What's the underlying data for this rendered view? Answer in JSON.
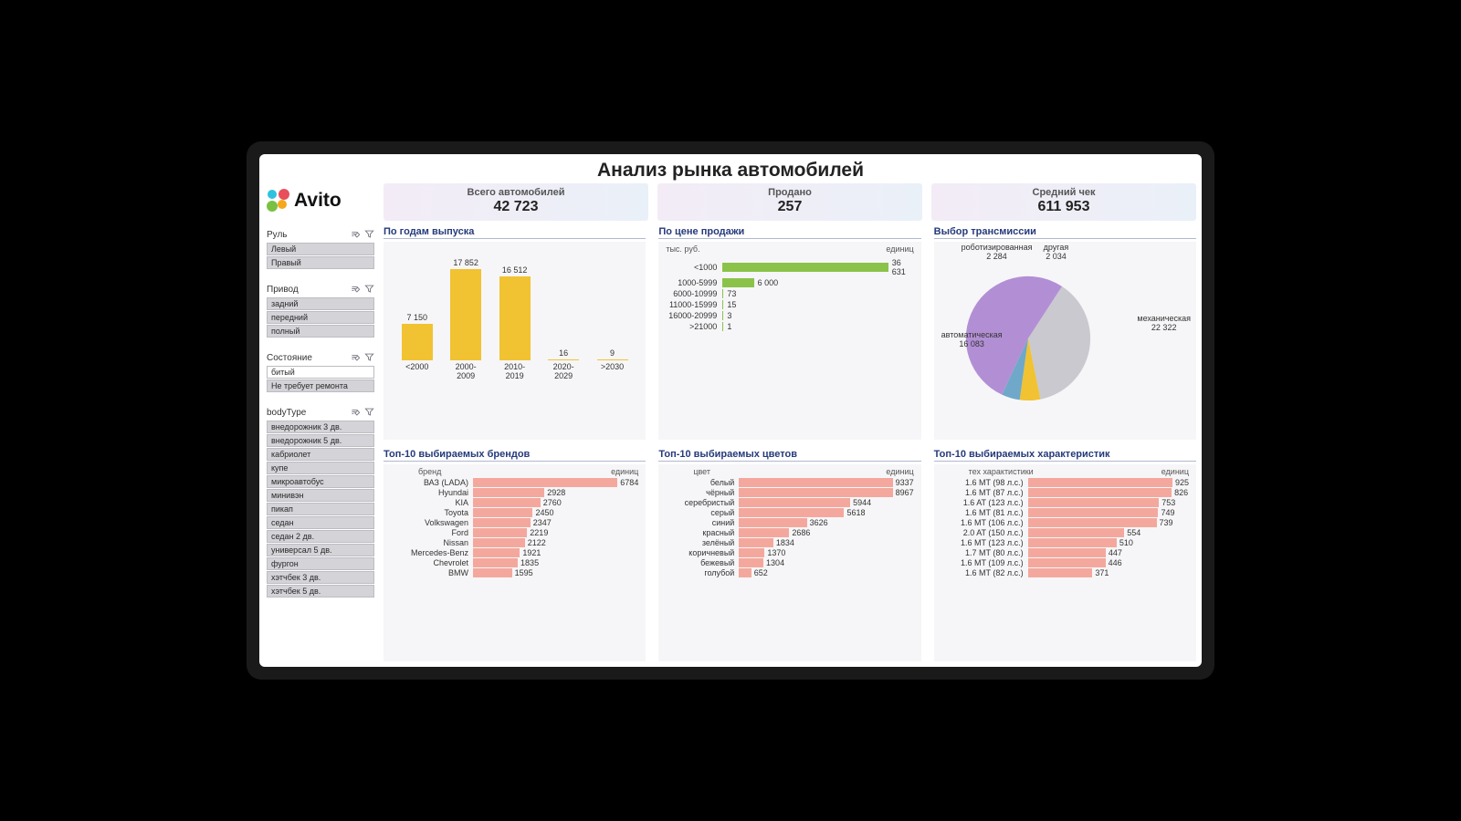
{
  "title": "Анализ рынка автомобилей",
  "logo_text": "Avito",
  "logo_colors": [
    "#2fc1e0",
    "#e84f5b",
    "#7ac143",
    "#f6a81c"
  ],
  "kpis": [
    {
      "label": "Всего автомобилей",
      "value": "42 723"
    },
    {
      "label": "Продано",
      "value": "257"
    },
    {
      "label": "Средний чек",
      "value": "611 953"
    }
  ],
  "filter_groups": [
    {
      "label": "Руль",
      "items": [
        "Левый",
        "Правый"
      ]
    },
    {
      "label": "Привод",
      "items": [
        "задний",
        "передний",
        "полный"
      ]
    },
    {
      "label": "Состояние",
      "items": [
        "битый",
        "Не требует ремонта"
      ],
      "alt_first": true
    },
    {
      "label": "bodyType",
      "items": [
        "внедорожник 3 дв.",
        "внедорожник 5 дв.",
        "кабриолет",
        "купе",
        "микроавтобус",
        "минивэн",
        "пикап",
        "седан",
        "седан 2 дв.",
        "универсал 5 дв.",
        "фургон",
        "хэтчбек 3 дв.",
        "хэтчбек 5 дв."
      ]
    }
  ],
  "year_chart": {
    "title": "По годам выпуска",
    "bar_color": "#f1c232",
    "max": 17852,
    "bars": [
      {
        "label": "<2000",
        "value": 7150,
        "value_text": "7 150"
      },
      {
        "label": "2000-2009",
        "value": 17852,
        "value_text": "17 852"
      },
      {
        "label": "2010-2019",
        "value": 16512,
        "value_text": "16 512"
      },
      {
        "label": "2020-2029",
        "value": 16,
        "value_text": "16"
      },
      {
        "label": ">2030",
        "value": 9,
        "value_text": "9"
      }
    ]
  },
  "price_chart": {
    "title": "По цене продажи",
    "left_label": "тыс. руб.",
    "right_label": "единиц",
    "bar_color": "#8bc34a",
    "max": 36631,
    "rows": [
      {
        "label": "<1000",
        "value": 36631,
        "value_text": "36 631"
      },
      {
        "label": "1000-5999",
        "value": 6000,
        "value_text": "6 000"
      },
      {
        "label": "6000-10999",
        "value": 73,
        "value_text": "73"
      },
      {
        "label": "11000-15999",
        "value": 15,
        "value_text": "15"
      },
      {
        "label": "16000-20999",
        "value": 3,
        "value_text": "3"
      },
      {
        "label": ">21000",
        "value": 1,
        "value_text": "1"
      }
    ]
  },
  "trans_chart": {
    "title": "Выбор трансмиссии",
    "colors": {
      "manual": "#b28fd4",
      "auto": "#c9c9cf",
      "robot": "#f1c232",
      "other": "#6fa8c9"
    },
    "slices": [
      {
        "key": "manual",
        "label": "механическая",
        "value": 22322,
        "value_text": "22 322"
      },
      {
        "key": "auto",
        "label": "автоматическая",
        "value": 16083,
        "value_text": "16 083"
      },
      {
        "key": "robot",
        "label": "роботизированная",
        "value": 2284,
        "value_text": "2 284"
      },
      {
        "key": "other",
        "label": "другая",
        "value": 2034,
        "value_text": "2 034"
      }
    ]
  },
  "brands_chart": {
    "title": "Топ-10 выбираемых брендов",
    "left_label": "бренд",
    "right_label": "единиц",
    "bar_color": "#f4a89d",
    "label_width": 90,
    "max": 6784,
    "rows": [
      {
        "label": "ВАЗ (LADA)",
        "value": 6784
      },
      {
        "label": "Hyundai",
        "value": 2928
      },
      {
        "label": "KIA",
        "value": 2760
      },
      {
        "label": "Toyota",
        "value": 2450
      },
      {
        "label": "Volkswagen",
        "value": 2347
      },
      {
        "label": "Ford",
        "value": 2219
      },
      {
        "label": "Nissan",
        "value": 2122
      },
      {
        "label": "Mercedes-Benz",
        "value": 1921
      },
      {
        "label": "Chevrolet",
        "value": 1835
      },
      {
        "label": "BMW",
        "value": 1595
      }
    ]
  },
  "colors_chart": {
    "title": "Топ-10 выбираемых цветов",
    "left_label": "цвет",
    "right_label": "единиц",
    "bar_color": "#f4a89d",
    "label_width": 80,
    "max": 9337,
    "rows": [
      {
        "label": "белый",
        "value": 9337
      },
      {
        "label": "чёрный",
        "value": 8967
      },
      {
        "label": "серебристый",
        "value": 5944
      },
      {
        "label": "серый",
        "value": 5618
      },
      {
        "label": "синий",
        "value": 3626
      },
      {
        "label": "красный",
        "value": 2686
      },
      {
        "label": "зелёный",
        "value": 1834
      },
      {
        "label": "коричневый",
        "value": 1370
      },
      {
        "label": "бежевый",
        "value": 1304
      },
      {
        "label": "голубой",
        "value": 652
      }
    ]
  },
  "specs_chart": {
    "title": "Топ-10 выбираемых характеристик",
    "left_label": "тех характистики",
    "right_label": "единиц",
    "bar_color": "#f4a89d",
    "label_width": 95,
    "max": 925,
    "rows": [
      {
        "label": "1.6 MT (98 л.с.)",
        "value": 925
      },
      {
        "label": "1.6 MT (87 л.с.)",
        "value": 826
      },
      {
        "label": "1.6 AT (123 л.с.)",
        "value": 753
      },
      {
        "label": "1.6 MT (81 л.с.)",
        "value": 749
      },
      {
        "label": "1.6 MT (106 л.с.)",
        "value": 739
      },
      {
        "label": "2.0 AT (150 л.с.)",
        "value": 554
      },
      {
        "label": "1.6 MT (123 л.с.)",
        "value": 510
      },
      {
        "label": "1.7 MT (80 л.с.)",
        "value": 447
      },
      {
        "label": "1.6 MT (109 л.с.)",
        "value": 446
      },
      {
        "label": "1.6 MT (82 л.с.)",
        "value": 371
      }
    ]
  }
}
